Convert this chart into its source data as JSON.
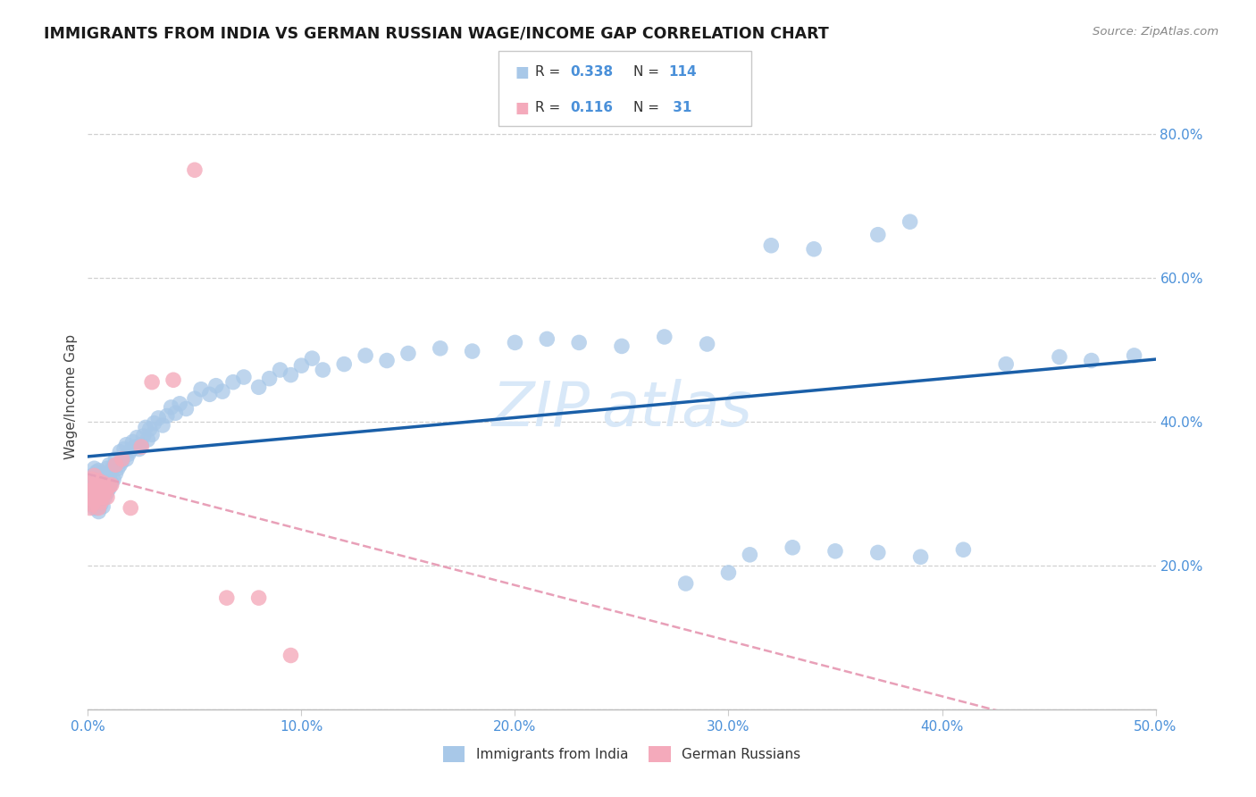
{
  "title": "IMMIGRANTS FROM INDIA VS GERMAN RUSSIAN WAGE/INCOME GAP CORRELATION CHART",
  "source": "Source: ZipAtlas.com",
  "ylabel": "Wage/Income Gap",
  "xlim": [
    0.0,
    0.5
  ],
  "ylim": [
    0.0,
    0.87
  ],
  "xticks": [
    0.0,
    0.1,
    0.2,
    0.3,
    0.4,
    0.5
  ],
  "yticks": [
    0.0,
    0.2,
    0.4,
    0.6,
    0.8
  ],
  "xticklabels": [
    "0.0%",
    "10.0%",
    "20.0%",
    "30.0%",
    "40.0%",
    "50.0%"
  ],
  "yticklabels": [
    "",
    "20.0%",
    "40.0%",
    "60.0%",
    "80.0%"
  ],
  "india_R": 0.338,
  "india_N": 114,
  "german_R": 0.116,
  "german_N": 31,
  "india_scatter_color": "#a8c8e8",
  "german_scatter_color": "#f4aabb",
  "india_line_color": "#1a5fa8",
  "german_line_color": "#e8a0b8",
  "grid_color": "#d0d0d0",
  "tick_color": "#4a90d9",
  "title_color": "#1a1a1a",
  "source_color": "#888888",
  "ylabel_color": "#444444",
  "watermark_color": "#d8e8f8",
  "india_x": [
    0.001,
    0.001,
    0.001,
    0.002,
    0.002,
    0.002,
    0.002,
    0.003,
    0.003,
    0.003,
    0.003,
    0.003,
    0.003,
    0.004,
    0.004,
    0.004,
    0.004,
    0.005,
    0.005,
    0.005,
    0.005,
    0.005,
    0.006,
    0.006,
    0.006,
    0.006,
    0.007,
    0.007,
    0.007,
    0.007,
    0.008,
    0.008,
    0.008,
    0.009,
    0.009,
    0.009,
    0.01,
    0.01,
    0.01,
    0.011,
    0.011,
    0.012,
    0.012,
    0.013,
    0.013,
    0.014,
    0.015,
    0.015,
    0.016,
    0.017,
    0.018,
    0.018,
    0.019,
    0.02,
    0.021,
    0.022,
    0.023,
    0.024,
    0.025,
    0.026,
    0.027,
    0.028,
    0.029,
    0.03,
    0.031,
    0.033,
    0.035,
    0.037,
    0.039,
    0.041,
    0.043,
    0.046,
    0.05,
    0.053,
    0.057,
    0.06,
    0.063,
    0.068,
    0.073,
    0.08,
    0.085,
    0.09,
    0.095,
    0.1,
    0.105,
    0.11,
    0.12,
    0.13,
    0.14,
    0.15,
    0.165,
    0.18,
    0.2,
    0.215,
    0.23,
    0.25,
    0.27,
    0.29,
    0.31,
    0.33,
    0.35,
    0.37,
    0.39,
    0.41,
    0.43,
    0.455,
    0.47,
    0.49,
    0.32,
    0.385,
    0.34,
    0.37,
    0.3,
    0.28
  ],
  "india_y": [
    0.295,
    0.305,
    0.315,
    0.285,
    0.3,
    0.31,
    0.325,
    0.28,
    0.295,
    0.305,
    0.315,
    0.325,
    0.335,
    0.28,
    0.295,
    0.31,
    0.33,
    0.275,
    0.29,
    0.305,
    0.318,
    0.332,
    0.285,
    0.3,
    0.315,
    0.325,
    0.282,
    0.298,
    0.312,
    0.328,
    0.295,
    0.31,
    0.325,
    0.302,
    0.318,
    0.335,
    0.308,
    0.322,
    0.34,
    0.315,
    0.332,
    0.32,
    0.338,
    0.328,
    0.348,
    0.335,
    0.34,
    0.358,
    0.345,
    0.362,
    0.348,
    0.368,
    0.355,
    0.36,
    0.372,
    0.365,
    0.378,
    0.362,
    0.368,
    0.38,
    0.392,
    0.375,
    0.39,
    0.382,
    0.398,
    0.405,
    0.395,
    0.408,
    0.42,
    0.412,
    0.425,
    0.418,
    0.432,
    0.445,
    0.438,
    0.45,
    0.442,
    0.455,
    0.462,
    0.448,
    0.46,
    0.472,
    0.465,
    0.478,
    0.488,
    0.472,
    0.48,
    0.492,
    0.485,
    0.495,
    0.502,
    0.498,
    0.51,
    0.515,
    0.51,
    0.505,
    0.518,
    0.508,
    0.215,
    0.225,
    0.22,
    0.218,
    0.212,
    0.222,
    0.48,
    0.49,
    0.485,
    0.492,
    0.645,
    0.678,
    0.64,
    0.66,
    0.19,
    0.175
  ],
  "german_x": [
    0.001,
    0.001,
    0.002,
    0.002,
    0.002,
    0.003,
    0.003,
    0.003,
    0.004,
    0.004,
    0.005,
    0.005,
    0.005,
    0.006,
    0.006,
    0.007,
    0.007,
    0.008,
    0.009,
    0.01,
    0.011,
    0.013,
    0.016,
    0.02,
    0.025,
    0.03,
    0.04,
    0.05,
    0.065,
    0.08,
    0.095
  ],
  "german_y": [
    0.28,
    0.3,
    0.285,
    0.305,
    0.32,
    0.29,
    0.308,
    0.325,
    0.295,
    0.315,
    0.28,
    0.3,
    0.318,
    0.288,
    0.308,
    0.295,
    0.315,
    0.302,
    0.295,
    0.31,
    0.312,
    0.34,
    0.348,
    0.28,
    0.365,
    0.455,
    0.458,
    0.75,
    0.155,
    0.155,
    0.075
  ]
}
